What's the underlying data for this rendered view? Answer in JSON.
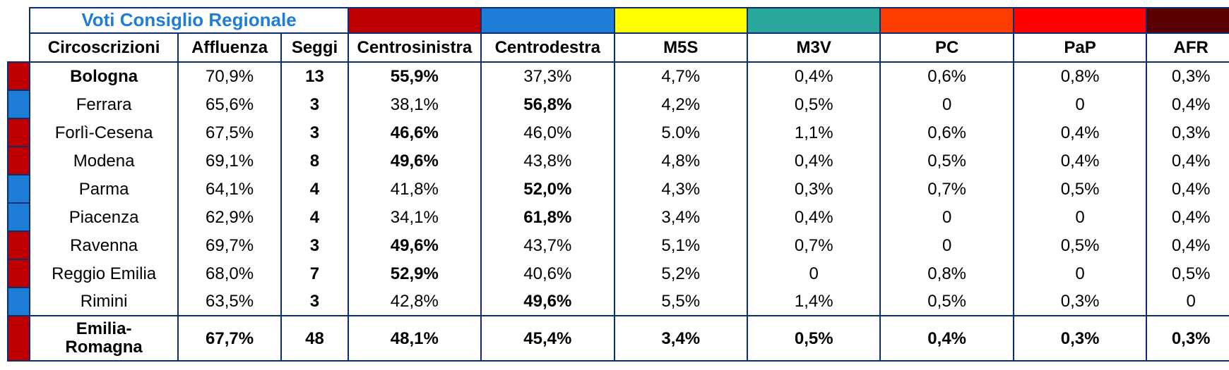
{
  "colors": {
    "border": "#0b2e6f",
    "title_text": "#1e7dd6",
    "marker_cs": "#c00000",
    "marker_cd": "#1e7dd6",
    "party": {
      "Centrosinistra": "#c00000",
      "Centrodestra": "#1e7dd6",
      "M5S": "#ffff00",
      "M3V": "#2aa79b",
      "PC": "#ff3d00",
      "PaP": "#ff0000",
      "AFR": "#5a0000"
    }
  },
  "title": "Voti Consiglio Regionale",
  "headers": {
    "circoscrizioni": "Circoscrizioni",
    "affluenza": "Affluenza",
    "seggi": "Seggi"
  },
  "parties": [
    "Centrosinistra",
    "Centrodestra",
    "M5S",
    "M3V",
    "PC",
    "PaP",
    "AFR"
  ],
  "rows": [
    {
      "name": "Bologna",
      "bold_name": true,
      "winner": "cs",
      "affluenza": "70,9%",
      "seggi": "13",
      "v": [
        "55,9%",
        "37,3%",
        "4,7%",
        "0,4%",
        "0,6%",
        "0,8%",
        "0,3%"
      ],
      "bold_idx": 0
    },
    {
      "name": "Ferrara",
      "bold_name": false,
      "winner": "cd",
      "affluenza": "65,6%",
      "seggi": "3",
      "v": [
        "38,1%",
        "56,8%",
        "4,2%",
        "0,5%",
        "0",
        "0",
        "0,4%"
      ],
      "bold_idx": 1
    },
    {
      "name": "Forlì-Cesena",
      "bold_name": false,
      "winner": "cs",
      "affluenza": "67,5%",
      "seggi": "3",
      "v": [
        "46,6%",
        "46,0%",
        "5.0%",
        "1,1%",
        "0,6%",
        "0,4%",
        "0,3%"
      ],
      "bold_idx": 0
    },
    {
      "name": "Modena",
      "bold_name": false,
      "winner": "cs",
      "affluenza": "69,1%",
      "seggi": "8",
      "v": [
        "49,6%",
        "43,8%",
        "4,8%",
        "0,4%",
        "0,5%",
        "0,4%",
        "0,4%"
      ],
      "bold_idx": 0
    },
    {
      "name": "Parma",
      "bold_name": false,
      "winner": "cd",
      "affluenza": "64,1%",
      "seggi": "4",
      "v": [
        "41,8%",
        "52,0%",
        "4,3%",
        "0,3%",
        "0,7%",
        "0,5%",
        "0,4%"
      ],
      "bold_idx": 1
    },
    {
      "name": "Piacenza",
      "bold_name": false,
      "winner": "cd",
      "affluenza": "62,9%",
      "seggi": "4",
      "v": [
        "34,1%",
        "61,8%",
        "3,4%",
        "0,4%",
        "0",
        "0",
        "0,4%"
      ],
      "bold_idx": 1
    },
    {
      "name": "Ravenna",
      "bold_name": false,
      "winner": "cs",
      "affluenza": "69,7%",
      "seggi": "3",
      "v": [
        "49,6%",
        "43,7%",
        "5,1%",
        "0,7%",
        "0",
        "0,5%",
        "0,4%"
      ],
      "bold_idx": 0
    },
    {
      "name": "Reggio Emilia",
      "bold_name": false,
      "winner": "cs",
      "affluenza": "68,0%",
      "seggi": "7",
      "v": [
        "52,9%",
        "40,6%",
        "5,2%",
        "0",
        "0,8%",
        "0",
        "0,5%"
      ],
      "bold_idx": 0
    },
    {
      "name": "Rimini",
      "bold_name": false,
      "winner": "cd",
      "affluenza": "63,5%",
      "seggi": "3",
      "v": [
        "42,8%",
        "49,6%",
        "5,5%",
        "1,4%",
        "0,5%",
        "0,3%",
        "0"
      ],
      "bold_idx": 1
    }
  ],
  "total": {
    "name": "Emilia-Romagna",
    "winner": "cs",
    "affluenza": "67,7%",
    "seggi": "48",
    "v": [
      "48,1%",
      "45,4%",
      "3,4%",
      "0,5%",
      "0,4%",
      "0,3%",
      "0,3%"
    ]
  }
}
